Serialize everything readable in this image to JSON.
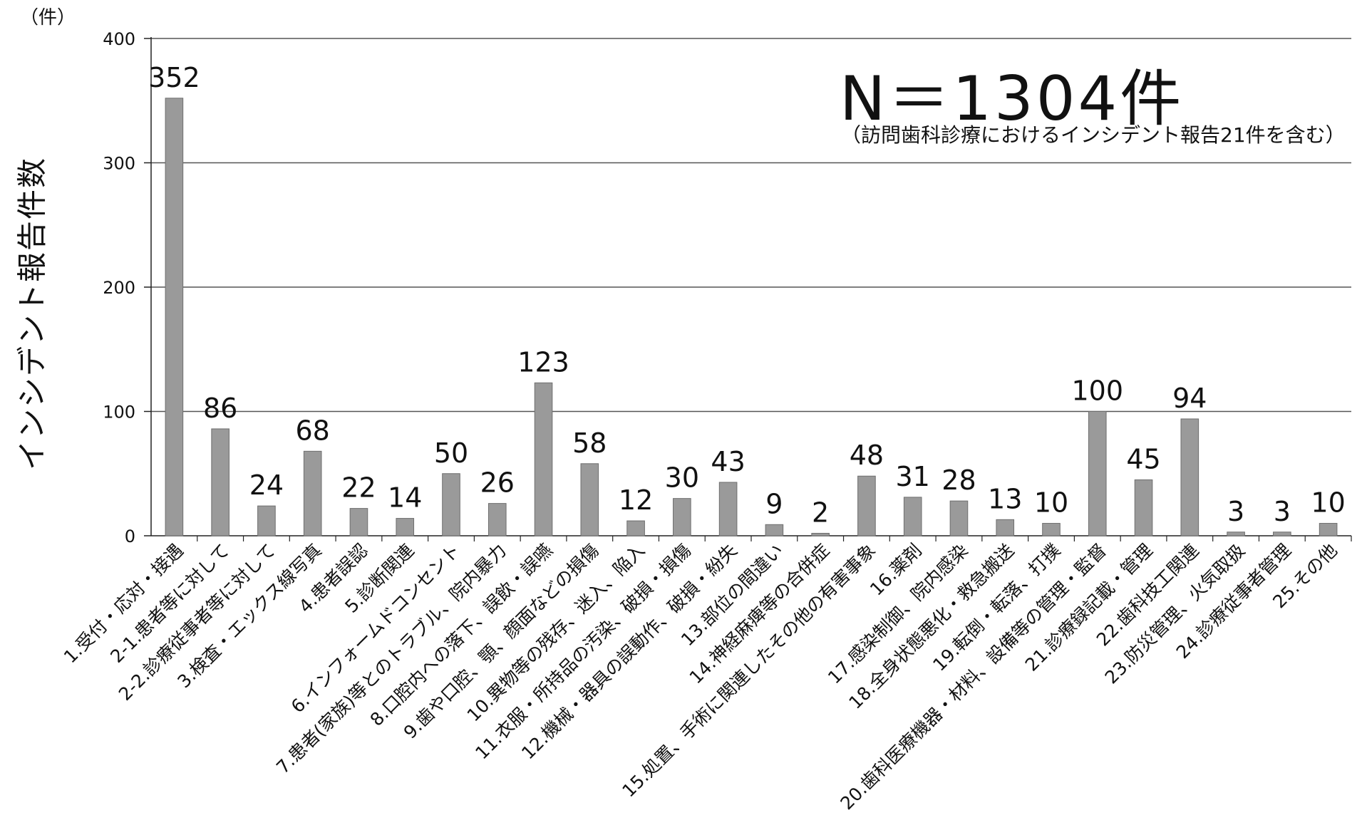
{
  "chart_data": {
    "type": "bar",
    "ylabel": "インシデント報告件数",
    "yunit": "（件）",
    "ylim": [
      0,
      400
    ],
    "yticks": [
      0,
      100,
      200,
      300,
      400
    ],
    "grid": true,
    "annotation_total": "N＝1304件",
    "annotation_note": "（訪問歯科診療におけるインシデント報告21件を含む）",
    "categories": [
      "1.受付・応対・接遇",
      "2-1.患者等に対して",
      "2-2.診療従事者等に対して",
      "3.検査・エックス線写真",
      "4.患者誤認",
      "5.診断関連",
      "6.インフォームドコンセント",
      "7.患者(家族)等とのトラブル、院内暴力",
      "8.口腔内への落下、誤飲・誤嚥",
      "9.歯や口腔、顎、顔面などの損傷",
      "10.異物等の残存、迷入、陥入",
      "11.衣服・所持品の汚染、破損・損傷",
      "12.機械・器具の誤動作、破損・紛失",
      "13.部位の間違い",
      "14.神経麻痺等の合併症",
      "15.処置、手術に関連したその他の有害事象",
      "16.薬剤",
      "17.感染制御、院内感染",
      "18.全身状態悪化・救急搬送",
      "19.転倒・転落、打撲",
      "20.歯科医療機器・材料、設備等の管理・監督",
      "21.診療録記載・管理",
      "22.歯科技工関連",
      "23.防災管理、火気取扱",
      "24.診療従事者管理",
      "25.その他"
    ],
    "values": [
      352,
      86,
      24,
      68,
      22,
      14,
      50,
      26,
      123,
      58,
      12,
      30,
      43,
      9,
      2,
      48,
      31,
      28,
      13,
      10,
      100,
      45,
      94,
      3,
      3,
      10
    ],
    "colors": {
      "bar": "#9a9a9a",
      "bar_edge": "#6e6e6e",
      "grid": "#555555",
      "axis": "#222222"
    }
  }
}
